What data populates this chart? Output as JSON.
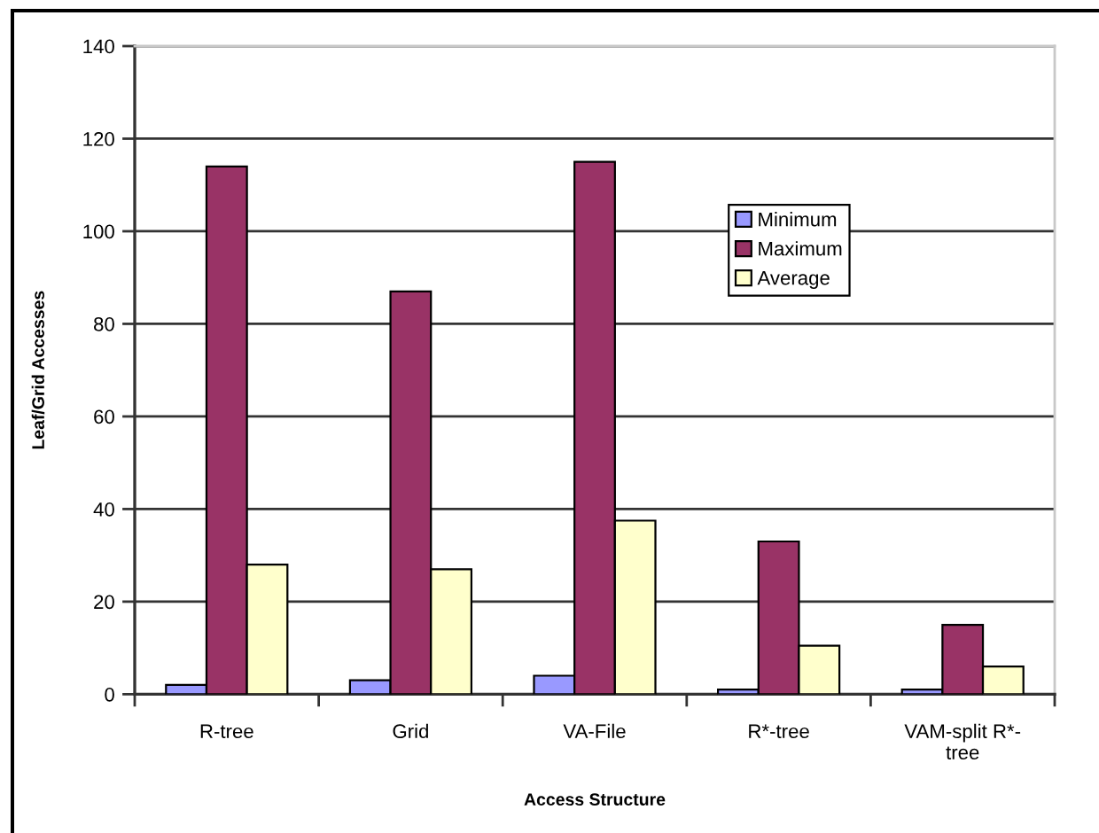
{
  "chart_data": {
    "type": "bar",
    "xlabel": "Access Structure",
    "ylabel": "Leaf/Grid Accesses",
    "categories": [
      "R-tree",
      "Grid",
      "VA-File",
      "R*-tree",
      "VAM-split R*-\ntree"
    ],
    "series": [
      {
        "name": "Minimum",
        "color": "#9999ff",
        "values": [
          2,
          3,
          4,
          1,
          1
        ]
      },
      {
        "name": "Maximum",
        "color": "#993366",
        "values": [
          114,
          87,
          115,
          33,
          15
        ]
      },
      {
        "name": "Average",
        "color": "#ffffcc",
        "values": [
          28,
          27,
          37.5,
          10.5,
          6
        ]
      }
    ],
    "ylim": [
      0,
      140
    ],
    "yticks": [
      0,
      20,
      40,
      60,
      80,
      100,
      120,
      140
    ],
    "grid": "y",
    "legend": "top right"
  }
}
